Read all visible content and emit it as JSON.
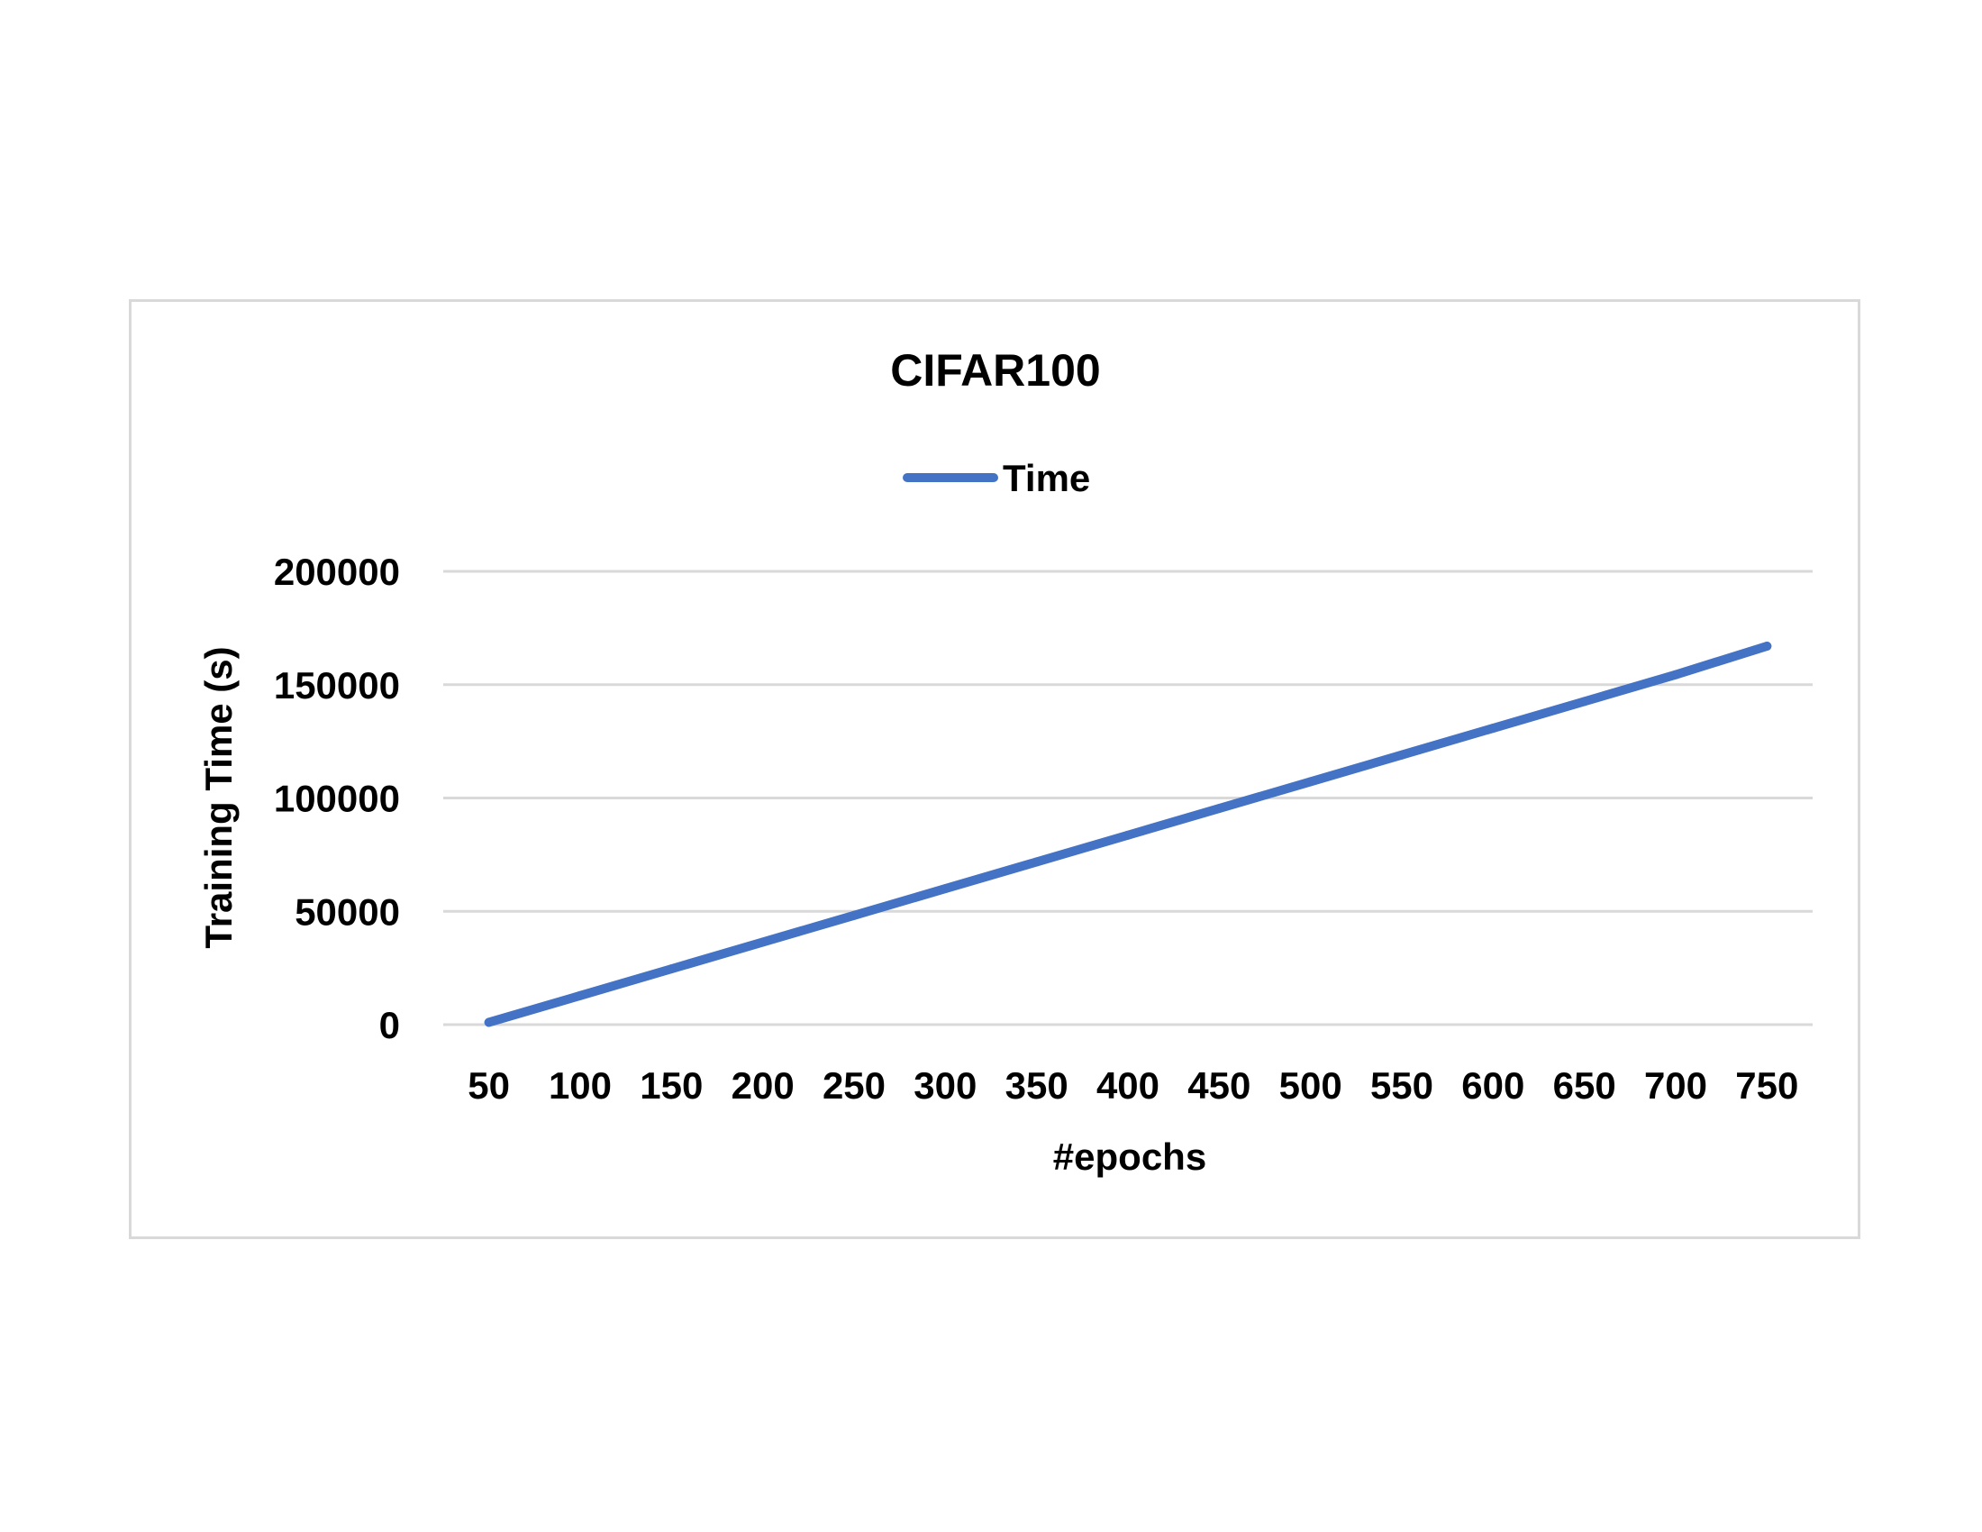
{
  "chart_data": {
    "type": "line",
    "title": "CIFAR100",
    "xlabel": "#epochs",
    "ylabel": "Training Time (s)",
    "categories": [
      "50",
      "100",
      "150",
      "200",
      "250",
      "300",
      "350",
      "400",
      "450",
      "500",
      "550",
      "600",
      "650",
      "700",
      "750"
    ],
    "series": [
      {
        "name": "Time",
        "color": "#4472c4",
        "values": [
          1000,
          12800,
          24600,
          36400,
          48200,
          60000,
          71800,
          83600,
          95400,
          107200,
          119000,
          130800,
          142600,
          154400,
          167000
        ]
      }
    ],
    "ylim": [
      0,
      200000
    ],
    "yticks": [
      "0",
      "50000",
      "100000",
      "150000",
      "200000"
    ],
    "grid": true,
    "legend_position": "top"
  }
}
